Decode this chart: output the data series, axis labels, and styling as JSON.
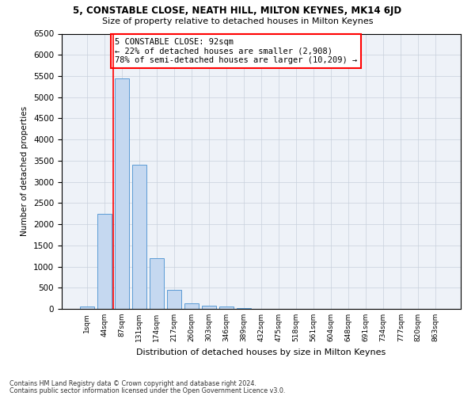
{
  "title1": "5, CONSTABLE CLOSE, NEATH HILL, MILTON KEYNES, MK14 6JD",
  "title2": "Size of property relative to detached houses in Milton Keynes",
  "xlabel": "Distribution of detached houses by size in Milton Keynes",
  "ylabel": "Number of detached properties",
  "footnote1": "Contains HM Land Registry data © Crown copyright and database right 2024.",
  "footnote2": "Contains public sector information licensed under the Open Government Licence v3.0.",
  "categories": [
    "1sqm",
    "44sqm",
    "87sqm",
    "131sqm",
    "174sqm",
    "217sqm",
    "260sqm",
    "303sqm",
    "346sqm",
    "389sqm",
    "432sqm",
    "475sqm",
    "518sqm",
    "561sqm",
    "604sqm",
    "648sqm",
    "691sqm",
    "734sqm",
    "777sqm",
    "820sqm",
    "863sqm"
  ],
  "values": [
    50,
    2250,
    5450,
    3400,
    1200,
    450,
    130,
    80,
    50,
    10,
    0,
    0,
    0,
    0,
    0,
    0,
    0,
    0,
    0,
    0,
    0
  ],
  "bar_color": "#c5d8f0",
  "bar_edge_color": "#5b9bd5",
  "grid_color": "#c8d0dc",
  "background_color": "#eef2f8",
  "annotation_line1": "5 CONSTABLE CLOSE: 92sqm",
  "annotation_line2": "← 22% of detached houses are smaller (2,908)",
  "annotation_line3": "78% of semi-detached houses are larger (10,209) →",
  "annotation_box_edge_color": "red",
  "vline_color": "red",
  "vline_x": 1.5,
  "ylim": [
    0,
    6500
  ],
  "yticks": [
    0,
    500,
    1000,
    1500,
    2000,
    2500,
    3000,
    3500,
    4000,
    4500,
    5000,
    5500,
    6000,
    6500
  ]
}
